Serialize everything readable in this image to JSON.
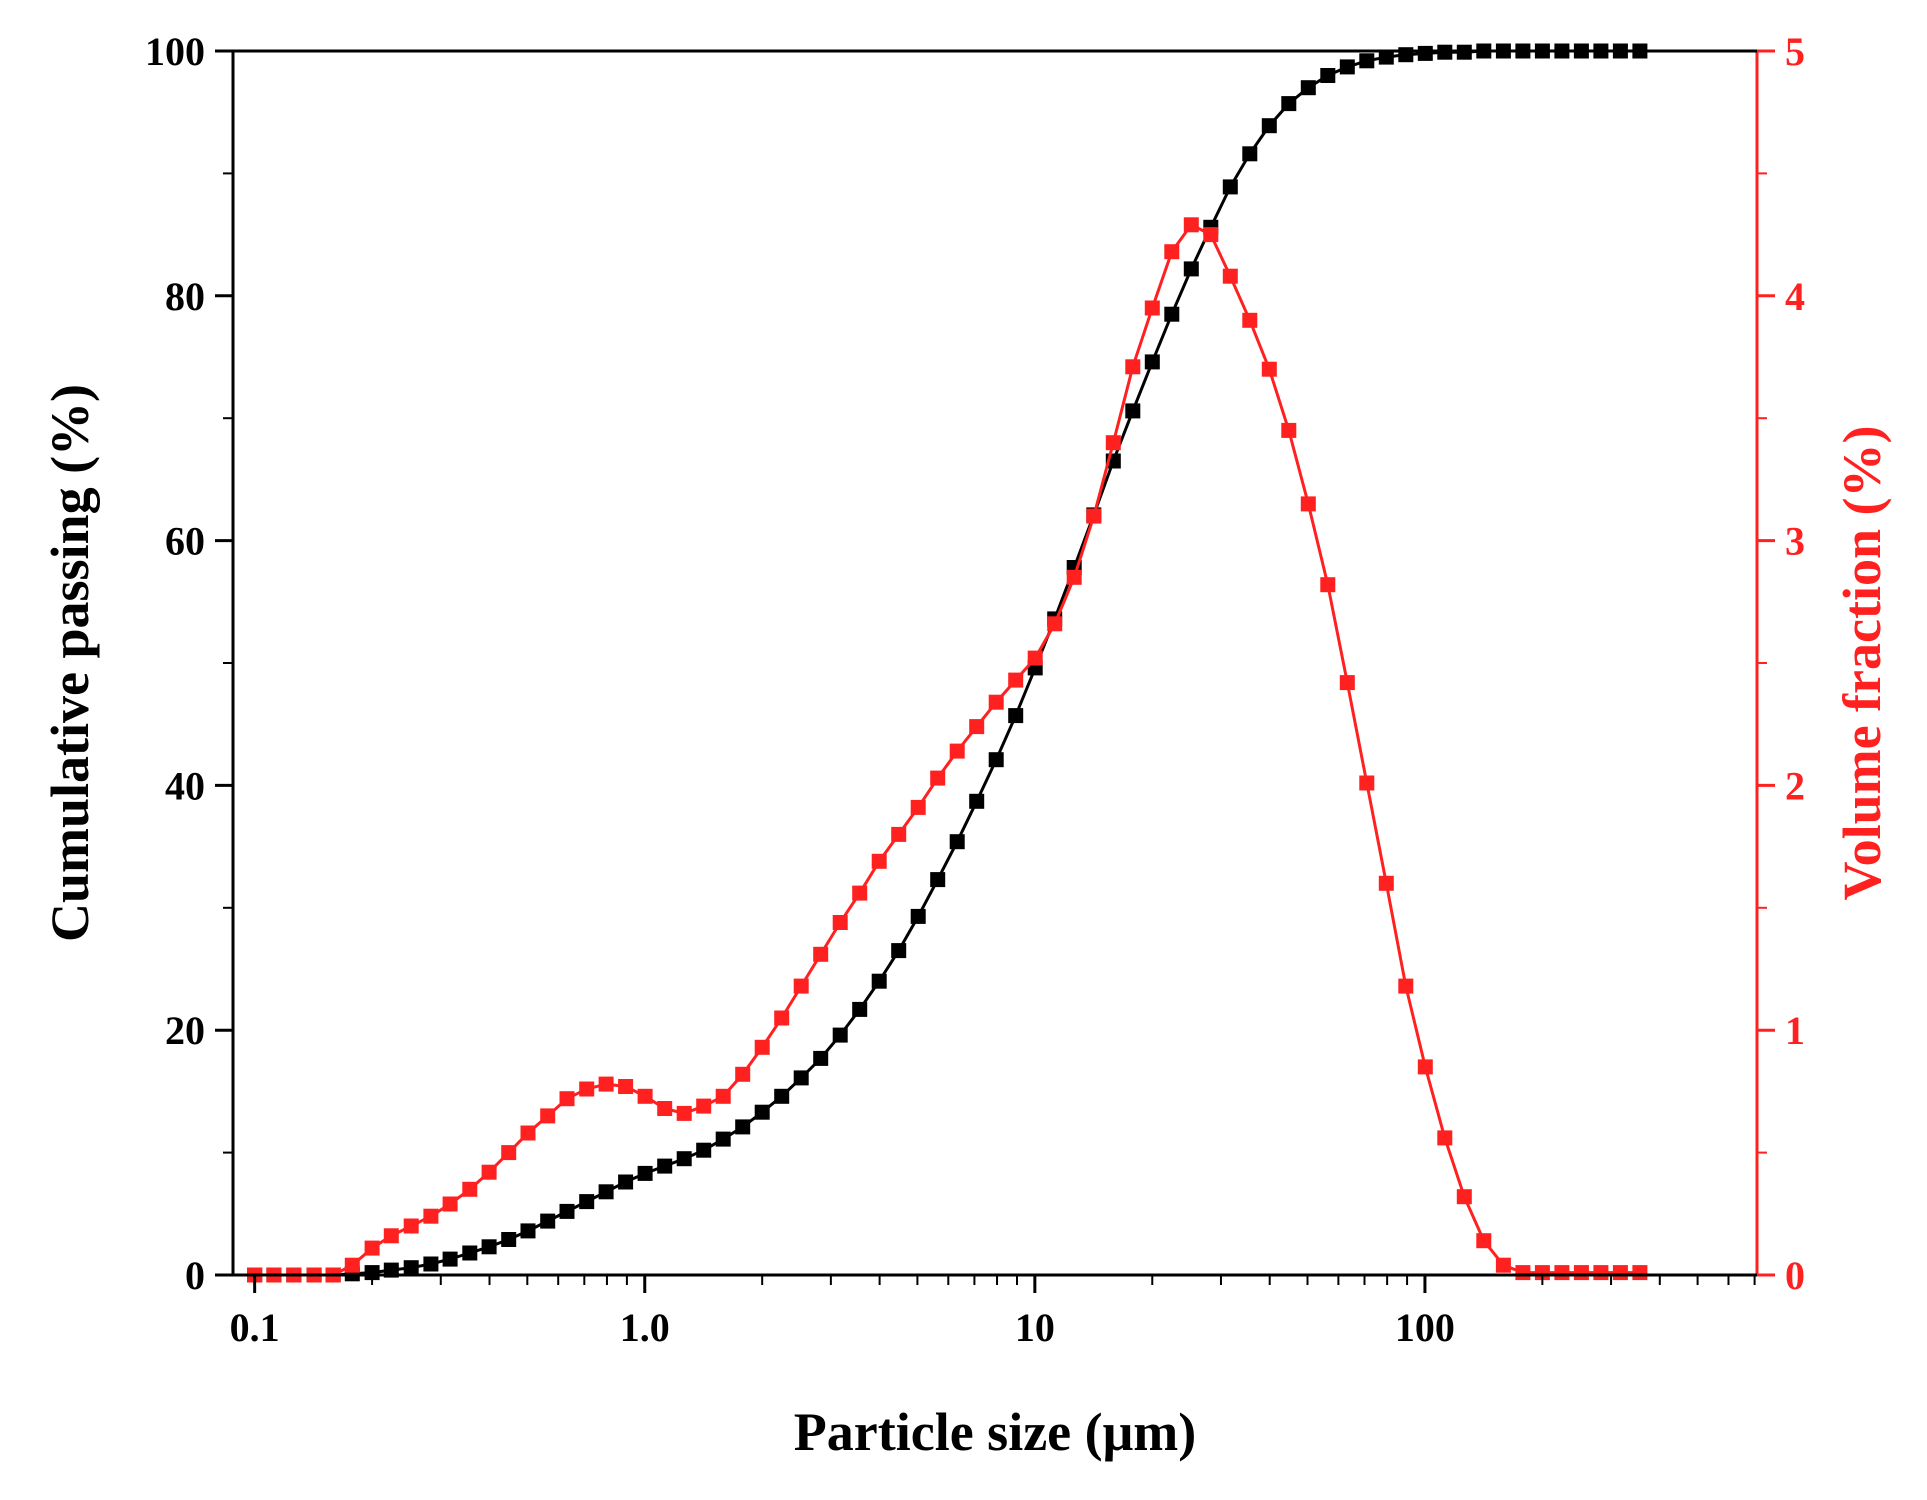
{
  "chart_data": {
    "type": "line",
    "title": "",
    "xlabel": "Particle size (μm)",
    "ylabel": "Cumulative passing (%)",
    "y2label": "Volume fraction (%)",
    "xscale": "log",
    "xlim": [
      0.088,
      710
    ],
    "ylim": [
      0,
      100
    ],
    "y2lim": [
      0,
      5
    ],
    "xticks": [
      {
        "value": 0.1,
        "label": "0.1"
      },
      {
        "value": 1.0,
        "label": "1.0"
      },
      {
        "value": 10,
        "label": "10"
      },
      {
        "value": 100,
        "label": "100"
      }
    ],
    "yticks": [
      {
        "value": 0,
        "label": "0"
      },
      {
        "value": 20,
        "label": "20"
      },
      {
        "value": 40,
        "label": "40"
      },
      {
        "value": 60,
        "label": "60"
      },
      {
        "value": 80,
        "label": "80"
      },
      {
        "value": 100,
        "label": "100"
      }
    ],
    "y2ticks": [
      {
        "value": 0,
        "label": "0"
      },
      {
        "value": 1,
        "label": "1"
      },
      {
        "value": 2,
        "label": "2"
      },
      {
        "value": 3,
        "label": "3"
      },
      {
        "value": 4,
        "label": "4"
      },
      {
        "value": 5,
        "label": "5"
      }
    ],
    "colors": {
      "cumulative": "#000000",
      "volume": "#ff2020",
      "axis": "#000000",
      "y2axis": "#ff2020"
    },
    "series": [
      {
        "name": "Cumulative passing",
        "axis": "y",
        "color": "#000000",
        "x": [
          0.1,
          0.112,
          0.126,
          0.142,
          0.159,
          0.178,
          0.2,
          0.224,
          0.252,
          0.283,
          0.317,
          0.356,
          0.399,
          0.448,
          0.502,
          0.564,
          0.632,
          0.71,
          0.796,
          0.893,
          1.002,
          1.125,
          1.262,
          1.416,
          1.589,
          1.783,
          2.0,
          2.244,
          2.518,
          2.825,
          3.17,
          3.557,
          3.991,
          4.477,
          5.024,
          5.637,
          6.325,
          7.096,
          7.962,
          8.934,
          10.024,
          11.247,
          12.619,
          14.159,
          15.887,
          17.825,
          20.0,
          22.44,
          25.179,
          28.251,
          31.698,
          35.566,
          39.905,
          44.774,
          50.238,
          56.368,
          63.246,
          70.963,
          79.621,
          89.337,
          100.237,
          112.468,
          126.191,
          141.589,
          158.866,
          178.25,
          200.0,
          224.404,
          251.785,
          282.508,
          316.979,
          355.656
        ],
        "values": [
          0,
          0,
          0,
          0,
          0,
          0.1,
          0.2,
          0.4,
          0.6,
          0.9,
          1.3,
          1.8,
          2.3,
          2.9,
          3.6,
          4.4,
          5.2,
          6.0,
          6.8,
          7.6,
          8.3,
          8.9,
          9.5,
          10.2,
          11.1,
          12.1,
          13.3,
          14.6,
          16.1,
          17.7,
          19.6,
          21.7,
          24.0,
          26.5,
          29.3,
          32.3,
          35.4,
          38.7,
          42.1,
          45.7,
          49.6,
          53.6,
          57.8,
          62.1,
          66.5,
          70.6,
          74.6,
          78.5,
          82.2,
          85.6,
          88.9,
          91.6,
          93.9,
          95.7,
          97.0,
          98.0,
          98.7,
          99.2,
          99.5,
          99.7,
          99.8,
          99.9,
          99.9,
          100,
          100,
          100,
          100,
          100,
          100,
          100,
          100,
          100
        ]
      },
      {
        "name": "Volume fraction",
        "axis": "y2",
        "color": "#ff2020",
        "x": [
          0.1,
          0.112,
          0.126,
          0.142,
          0.159,
          0.178,
          0.2,
          0.224,
          0.252,
          0.283,
          0.317,
          0.356,
          0.399,
          0.448,
          0.502,
          0.564,
          0.632,
          0.71,
          0.796,
          0.893,
          1.002,
          1.125,
          1.262,
          1.416,
          1.589,
          1.783,
          2.0,
          2.244,
          2.518,
          2.825,
          3.17,
          3.557,
          3.991,
          4.477,
          5.024,
          5.637,
          6.325,
          7.096,
          7.962,
          8.934,
          10.024,
          11.247,
          12.619,
          14.159,
          15.887,
          17.825,
          20.0,
          22.44,
          25.179,
          28.251,
          31.698,
          35.566,
          39.905,
          44.774,
          50.238,
          56.368,
          63.246,
          70.963,
          79.621,
          89.337,
          100.237,
          112.468,
          126.191,
          141.589,
          158.866,
          178.25,
          200.0,
          224.404,
          251.785,
          282.508,
          316.979,
          355.656
        ],
        "values": [
          0,
          0,
          0,
          0,
          0,
          0.04,
          0.11,
          0.16,
          0.2,
          0.24,
          0.29,
          0.35,
          0.42,
          0.5,
          0.58,
          0.65,
          0.72,
          0.76,
          0.78,
          0.77,
          0.73,
          0.68,
          0.66,
          0.69,
          0.73,
          0.82,
          0.93,
          1.05,
          1.18,
          1.31,
          1.44,
          1.56,
          1.69,
          1.8,
          1.91,
          2.03,
          2.14,
          2.24,
          2.34,
          2.43,
          2.52,
          2.66,
          2.85,
          3.1,
          3.4,
          3.71,
          3.95,
          4.18,
          4.29,
          4.25,
          4.08,
          3.9,
          3.7,
          3.45,
          3.15,
          2.82,
          2.42,
          2.01,
          1.6,
          1.18,
          0.85,
          0.56,
          0.32,
          0.14,
          0.04,
          0.01,
          0.01,
          0.01,
          0.01,
          0.01,
          0.01,
          0.01
        ]
      }
    ]
  }
}
